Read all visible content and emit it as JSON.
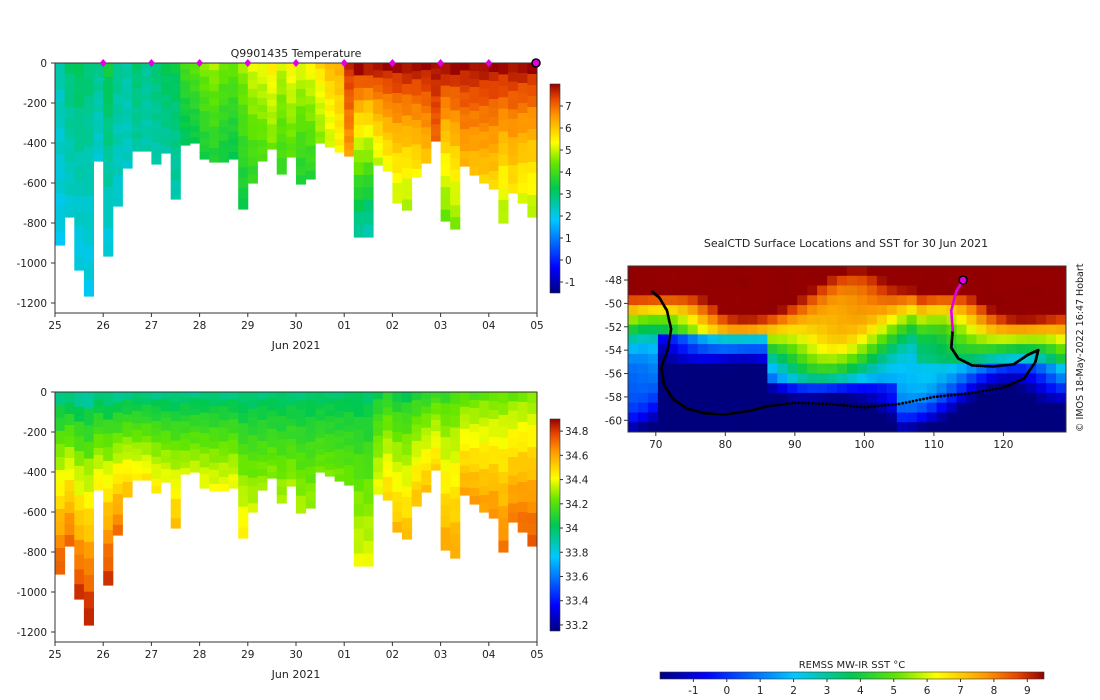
{
  "temperature_chart_data": {
    "type": "heatmap",
    "title": "Q9901435  Temperature",
    "xlabel": "Jun 2021",
    "x_ticks": [
      "25",
      "26",
      "27",
      "28",
      "29",
      "30",
      "01",
      "02",
      "03",
      "04",
      "05"
    ],
    "x_range": [
      25,
      35
    ],
    "y_ticks": [
      "0",
      "-200",
      "-400",
      "-600",
      "-800",
      "-1000",
      "-1200"
    ],
    "y_range": [
      -1250,
      0
    ],
    "colorbar_ticks": [
      "7",
      "6",
      "5",
      "4",
      "3",
      "2",
      "1",
      "0",
      "-1"
    ],
    "colorbar_range": [
      -1.5,
      8
    ],
    "surface_markers": [
      26,
      27,
      28,
      29,
      30,
      31,
      32,
      33,
      34
    ],
    "profiles": [
      {
        "t": 25.0,
        "depth": 910,
        "surf": 2.5,
        "bot": 2.0
      },
      {
        "t": 25.2,
        "depth": 770,
        "surf": 3.0,
        "bot": 2.2
      },
      {
        "t": 25.4,
        "depth": 1035,
        "surf": 3.2,
        "bot": 2.0
      },
      {
        "t": 25.6,
        "depth": 1165,
        "surf": 3.0,
        "bot": 2.0
      },
      {
        "t": 25.8,
        "depth": 490,
        "surf": 2.8,
        "bot": 2.2
      },
      {
        "t": 26.0,
        "depth": 965,
        "surf": 3.4,
        "bot": 2.1
      },
      {
        "t": 26.2,
        "depth": 715,
        "surf": 2.8,
        "bot": 2.2
      },
      {
        "t": 26.4,
        "depth": 525,
        "surf": 2.6,
        "bot": 2.3
      },
      {
        "t": 26.6,
        "depth": 440,
        "surf": 3.0,
        "bot": 2.6
      },
      {
        "t": 26.8,
        "depth": 440,
        "surf": 2.7,
        "bot": 2.5
      },
      {
        "t": 27.0,
        "depth": 505,
        "surf": 3.0,
        "bot": 2.5
      },
      {
        "t": 27.2,
        "depth": 450,
        "surf": 3.3,
        "bot": 2.6
      },
      {
        "t": 27.4,
        "depth": 680,
        "surf": 3.3,
        "bot": 2.5
      },
      {
        "t": 27.6,
        "depth": 410,
        "surf": 4.1,
        "bot": 3.1
      },
      {
        "t": 27.8,
        "depth": 400,
        "surf": 4.3,
        "bot": 3.3
      },
      {
        "t": 28.0,
        "depth": 480,
        "surf": 4.6,
        "bot": 3.5
      },
      {
        "t": 28.2,
        "depth": 495,
        "surf": 4.8,
        "bot": 3.6
      },
      {
        "t": 28.4,
        "depth": 495,
        "surf": 4.5,
        "bot": 3.4
      },
      {
        "t": 28.6,
        "depth": 480,
        "surf": 4.4,
        "bot": 3.3
      },
      {
        "t": 28.8,
        "depth": 730,
        "surf": 4.7,
        "bot": 3.4
      },
      {
        "t": 29.0,
        "depth": 600,
        "surf": 5.2,
        "bot": 3.8
      },
      {
        "t": 29.2,
        "depth": 490,
        "surf": 5.3,
        "bot": 4.1
      },
      {
        "t": 29.4,
        "depth": 430,
        "surf": 5.6,
        "bot": 4.5
      },
      {
        "t": 29.6,
        "depth": 555,
        "surf": 5.0,
        "bot": 3.9
      },
      {
        "t": 29.8,
        "depth": 470,
        "surf": 5.5,
        "bot": 4.2
      },
      {
        "t": 30.0,
        "depth": 605,
        "surf": 5.2,
        "bot": 3.6
      },
      {
        "t": 30.2,
        "depth": 580,
        "surf": 5.4,
        "bot": 3.7
      },
      {
        "t": 30.4,
        "depth": 400,
        "surf": 5.8,
        "bot": 4.6
      },
      {
        "t": 30.6,
        "depth": 420,
        "surf": 6.2,
        "bot": 5.0
      },
      {
        "t": 30.8,
        "depth": 445,
        "surf": 6.3,
        "bot": 5.4
      },
      {
        "t": 31.0,
        "depth": 465,
        "surf": 7.6,
        "bot": 6.5
      },
      {
        "t": 31.2,
        "depth": 870,
        "surf": 7.9,
        "bot": 2.6
      },
      {
        "t": 31.4,
        "depth": 870,
        "surf": 7.8,
        "bot": 2.4
      },
      {
        "t": 31.6,
        "depth": 510,
        "surf": 7.9,
        "bot": 5.0
      },
      {
        "t": 31.8,
        "depth": 540,
        "surf": 7.9,
        "bot": 5.3
      },
      {
        "t": 32.0,
        "depth": 700,
        "surf": 7.9,
        "bot": 5.0
      },
      {
        "t": 32.2,
        "depth": 735,
        "surf": 7.9,
        "bot": 4.8
      },
      {
        "t": 32.4,
        "depth": 570,
        "surf": 7.9,
        "bot": 5.5
      },
      {
        "t": 32.6,
        "depth": 500,
        "surf": 7.9,
        "bot": 6.0
      },
      {
        "t": 32.8,
        "depth": 390,
        "surf": 7.9,
        "bot": 7.0
      },
      {
        "t": 33.0,
        "depth": 790,
        "surf": 7.9,
        "bot": 4.4
      },
      {
        "t": 33.2,
        "depth": 830,
        "surf": 7.9,
        "bot": 4.6
      },
      {
        "t": 33.4,
        "depth": 515,
        "surf": 7.9,
        "bot": 6.2
      },
      {
        "t": 33.6,
        "depth": 560,
        "surf": 7.9,
        "bot": 6.0
      },
      {
        "t": 33.8,
        "depth": 600,
        "surf": 7.9,
        "bot": 5.9
      },
      {
        "t": 34.0,
        "depth": 630,
        "surf": 7.9,
        "bot": 5.8
      },
      {
        "t": 34.2,
        "depth": 800,
        "surf": 7.9,
        "bot": 4.8
      },
      {
        "t": 34.4,
        "depth": 650,
        "surf": 7.9,
        "bot": 5.6
      },
      {
        "t": 34.6,
        "depth": 700,
        "surf": 7.9,
        "bot": 5.2
      },
      {
        "t": 34.8,
        "depth": 770,
        "surf": 7.9,
        "bot": 4.9
      }
    ]
  },
  "salinity_chart_data": {
    "type": "heatmap",
    "title": "",
    "xlabel": "Jun 2021",
    "x_ticks": [
      "25",
      "26",
      "27",
      "28",
      "29",
      "30",
      "01",
      "02",
      "03",
      "04",
      "05"
    ],
    "x_range": [
      25,
      35
    ],
    "y_ticks": [
      "0",
      "-200",
      "-400",
      "-600",
      "-800",
      "-1000",
      "-1200"
    ],
    "y_range": [
      -1250,
      0
    ],
    "colorbar_ticks": [
      "34.8",
      "34.6",
      "34.4",
      "34.2",
      "34",
      "33.8",
      "33.6",
      "33.4",
      "33.2"
    ],
    "colorbar_range": [
      33.15,
      34.9
    ],
    "profiles": [
      {
        "t": 25.0,
        "depth": 910,
        "surf": 33.95,
        "bot": 34.75
      },
      {
        "t": 25.2,
        "depth": 770,
        "surf": 33.95,
        "bot": 34.72
      },
      {
        "t": 25.4,
        "depth": 1035,
        "surf": 33.93,
        "bot": 34.8
      },
      {
        "t": 25.6,
        "depth": 1165,
        "surf": 33.93,
        "bot": 34.84
      },
      {
        "t": 25.8,
        "depth": 490,
        "surf": 33.95,
        "bot": 34.45
      },
      {
        "t": 26.0,
        "depth": 965,
        "surf": 33.95,
        "bot": 34.8
      },
      {
        "t": 26.2,
        "depth": 715,
        "surf": 33.94,
        "bot": 34.7
      },
      {
        "t": 26.4,
        "depth": 525,
        "surf": 33.95,
        "bot": 34.55
      },
      {
        "t": 26.6,
        "depth": 440,
        "surf": 33.95,
        "bot": 34.45
      },
      {
        "t": 26.8,
        "depth": 440,
        "surf": 33.95,
        "bot": 34.45
      },
      {
        "t": 27.0,
        "depth": 505,
        "surf": 33.95,
        "bot": 34.45
      },
      {
        "t": 27.2,
        "depth": 450,
        "surf": 33.95,
        "bot": 34.4
      },
      {
        "t": 27.4,
        "depth": 680,
        "surf": 33.95,
        "bot": 34.55
      },
      {
        "t": 27.6,
        "depth": 410,
        "surf": 33.95,
        "bot": 34.35
      },
      {
        "t": 27.8,
        "depth": 400,
        "surf": 33.95,
        "bot": 34.35
      },
      {
        "t": 28.0,
        "depth": 480,
        "surf": 33.96,
        "bot": 34.4
      },
      {
        "t": 28.2,
        "depth": 495,
        "surf": 33.96,
        "bot": 34.4
      },
      {
        "t": 28.4,
        "depth": 495,
        "surf": 33.96,
        "bot": 34.4
      },
      {
        "t": 28.6,
        "depth": 480,
        "surf": 33.96,
        "bot": 34.4
      },
      {
        "t": 28.8,
        "depth": 730,
        "surf": 33.96,
        "bot": 34.45
      },
      {
        "t": 29.0,
        "depth": 600,
        "surf": 33.97,
        "bot": 34.35
      },
      {
        "t": 29.2,
        "depth": 490,
        "surf": 33.97,
        "bot": 34.3
      },
      {
        "t": 29.4,
        "depth": 430,
        "surf": 33.97,
        "bot": 34.28
      },
      {
        "t": 29.6,
        "depth": 555,
        "surf": 33.97,
        "bot": 34.32
      },
      {
        "t": 29.8,
        "depth": 470,
        "surf": 33.97,
        "bot": 34.3
      },
      {
        "t": 30.0,
        "depth": 605,
        "surf": 33.98,
        "bot": 34.32
      },
      {
        "t": 30.2,
        "depth": 580,
        "surf": 33.98,
        "bot": 34.3
      },
      {
        "t": 30.4,
        "depth": 400,
        "surf": 33.98,
        "bot": 34.25
      },
      {
        "t": 30.6,
        "depth": 420,
        "surf": 33.98,
        "bot": 34.25
      },
      {
        "t": 30.8,
        "depth": 445,
        "surf": 33.98,
        "bot": 34.25
      },
      {
        "t": 31.0,
        "depth": 465,
        "surf": 33.99,
        "bot": 34.25
      },
      {
        "t": 31.2,
        "depth": 870,
        "surf": 34.0,
        "bot": 34.38
      },
      {
        "t": 31.4,
        "depth": 870,
        "surf": 34.0,
        "bot": 34.38
      },
      {
        "t": 31.6,
        "depth": 510,
        "surf": 34.05,
        "bot": 34.4
      },
      {
        "t": 31.8,
        "depth": 540,
        "surf": 34.1,
        "bot": 34.5
      },
      {
        "t": 32.0,
        "depth": 700,
        "surf": 34.05,
        "bot": 34.55
      },
      {
        "t": 32.2,
        "depth": 735,
        "surf": 34.05,
        "bot": 34.55
      },
      {
        "t": 32.4,
        "depth": 570,
        "surf": 34.08,
        "bot": 34.55
      },
      {
        "t": 32.6,
        "depth": 500,
        "surf": 34.1,
        "bot": 34.55
      },
      {
        "t": 32.8,
        "depth": 390,
        "surf": 34.15,
        "bot": 34.5
      },
      {
        "t": 33.0,
        "depth": 790,
        "surf": 34.15,
        "bot": 34.6
      },
      {
        "t": 33.2,
        "depth": 830,
        "surf": 34.18,
        "bot": 34.6
      },
      {
        "t": 33.4,
        "depth": 515,
        "surf": 34.2,
        "bot": 34.6
      },
      {
        "t": 33.6,
        "depth": 560,
        "surf": 34.2,
        "bot": 34.62
      },
      {
        "t": 33.8,
        "depth": 600,
        "surf": 34.22,
        "bot": 34.62
      },
      {
        "t": 34.0,
        "depth": 630,
        "surf": 34.22,
        "bot": 34.65
      },
      {
        "t": 34.2,
        "depth": 800,
        "surf": 34.24,
        "bot": 34.68
      },
      {
        "t": 34.4,
        "depth": 650,
        "surf": 34.24,
        "bot": 34.68
      },
      {
        "t": 34.6,
        "depth": 700,
        "surf": 34.25,
        "bot": 34.72
      },
      {
        "t": 34.8,
        "depth": 770,
        "surf": 34.26,
        "bot": 34.75
      }
    ]
  },
  "map_chart_data": {
    "type": "heatmap",
    "title": "SealCTD Surface Locations and SST for 30 Jun 2021",
    "x_ticks": [
      "70",
      "80",
      "90",
      "100",
      "110",
      "120"
    ],
    "x_range": [
      66,
      129
    ],
    "y_ticks": [
      "-48",
      "-50",
      "-52",
      "-54",
      "-56",
      "-58",
      "-60"
    ],
    "y_range": [
      -61,
      -46.8
    ],
    "colorbar_label": "REMSS MW-IR SST °C",
    "colorbar_ticks": [
      "-1",
      "0",
      "1",
      "2",
      "3",
      "4",
      "5",
      "6",
      "7",
      "8",
      "9"
    ],
    "colorbar_range": [
      -2,
      9.5
    ],
    "credit": "© IMOS 18-May-2022 16:47 Hobart",
    "track_lonlat": [
      [
        69.5,
        -49.0
      ],
      [
        70.5,
        -49.5
      ],
      [
        71.6,
        -50.6
      ],
      [
        72.2,
        -52.2
      ],
      [
        71.7,
        -54.0
      ],
      [
        70.8,
        -55.5
      ],
      [
        71.2,
        -57.0
      ],
      [
        72.5,
        -58.2
      ],
      [
        74.5,
        -59.0
      ],
      [
        77.0,
        -59.4
      ],
      [
        80.0,
        -59.5
      ],
      [
        83.5,
        -59.2
      ],
      [
        86.0,
        -58.8
      ],
      [
        90.0,
        -58.5
      ],
      [
        95.0,
        -58.6
      ],
      [
        100.0,
        -58.9
      ],
      [
        105.0,
        -58.6
      ],
      [
        110.0,
        -58.0
      ],
      [
        115.0,
        -57.7
      ],
      [
        120.0,
        -57.2
      ],
      [
        123.0,
        -56.4
      ],
      [
        124.6,
        -55.0
      ],
      [
        125.0,
        -54.0
      ],
      [
        123.5,
        -54.4
      ],
      [
        121.5,
        -55.2
      ],
      [
        118.5,
        -55.4
      ],
      [
        115.5,
        -55.3
      ],
      [
        113.5,
        -54.7
      ],
      [
        112.5,
        -53.8
      ],
      [
        112.7,
        -52.3
      ],
      [
        112.5,
        -50.6
      ],
      [
        113.2,
        -49.0
      ],
      [
        114.2,
        -48.0
      ]
    ],
    "current_location": [
      114.2,
      -48.0
    ]
  }
}
